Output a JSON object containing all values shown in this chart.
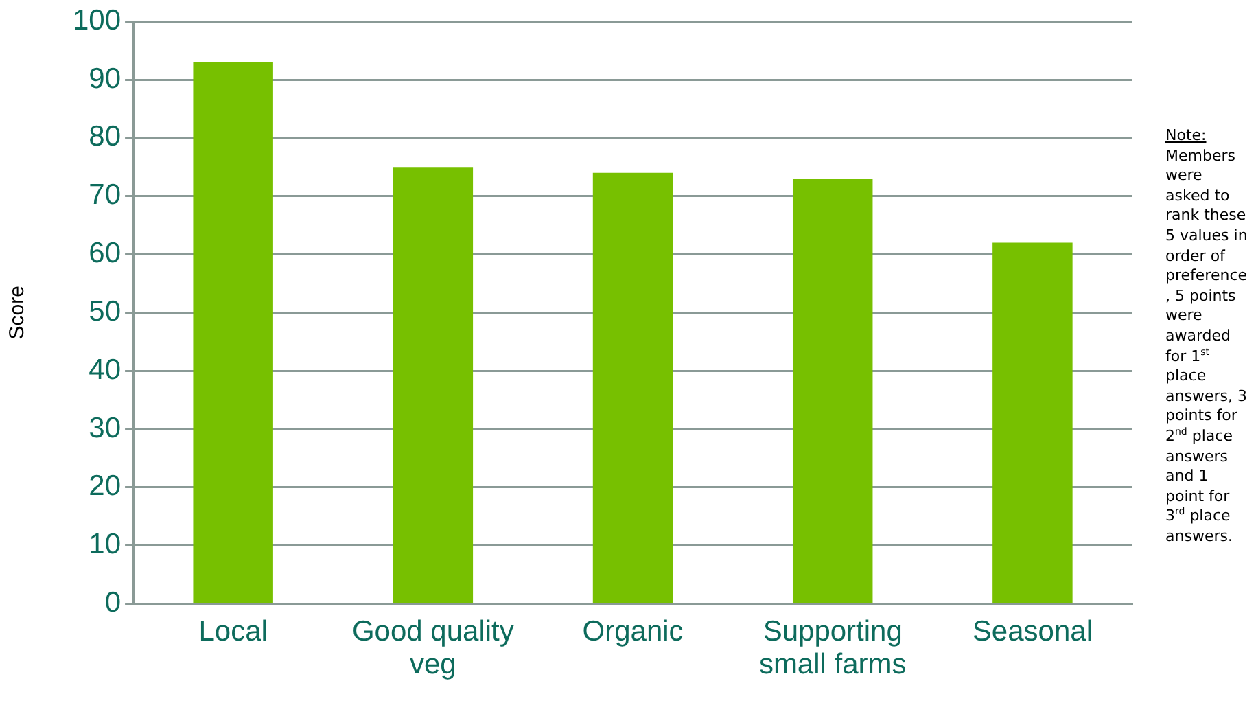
{
  "chart_data": {
    "type": "bar",
    "ylabel": "Score",
    "categories": [
      "Local",
      "Good quality veg",
      "Organic",
      "Supporting small farms",
      "Seasonal"
    ],
    "values": [
      93,
      75,
      74,
      73,
      62
    ],
    "color": "#77c000",
    "ylim": [
      0,
      100
    ],
    "yticks": [
      0,
      10,
      20,
      30,
      40,
      50,
      60,
      70,
      80,
      90,
      100
    ],
    "grid": "y",
    "legend": false,
    "annotations": [
      "Note:",
      "Members were asked to rank these 5 values in order of preference, 5 points were awarded for 1$^{st}$ place answers, 3 points for 2$^{nd}$ place answers and 1 point for 3$^{rd}$ place answers."
    ]
  }
}
